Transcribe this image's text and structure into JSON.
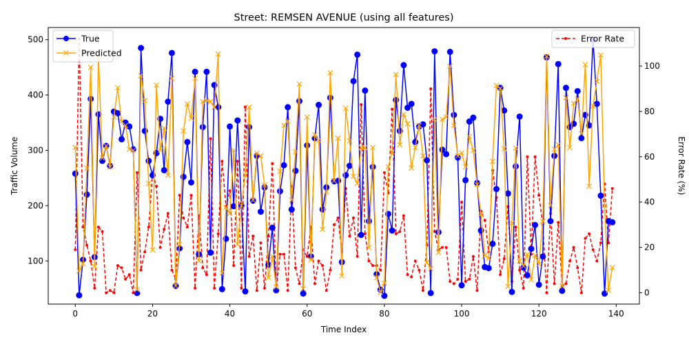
{
  "chart_data": {
    "type": "line",
    "title": "Street: REMSEN AVENUE (using all features)",
    "xlabel": "Time Index",
    "ylabel": "Traffic Volume",
    "y2label": "Error Rate (%)",
    "xlim": [
      -7,
      146
    ],
    "ylim": [
      22,
      522
    ],
    "y2lim": [
      -5,
      117
    ],
    "xticks": [
      0,
      20,
      40,
      60,
      80,
      100,
      120,
      140
    ],
    "yticks": [
      100,
      200,
      300,
      400,
      500
    ],
    "y2ticks": [
      0,
      20,
      40,
      60,
      80,
      100
    ],
    "grid": false,
    "legend_left": "top-left",
    "legend_right": "top-right",
    "series": [
      {
        "name": "True",
        "axis": "left",
        "color": "#0000ff",
        "marker": "circle",
        "values": [
          258,
          38,
          102,
          220,
          393,
          107,
          365,
          281,
          308,
          272,
          370,
          367,
          320,
          350,
          343,
          302,
          42,
          485,
          335,
          281,
          255,
          295,
          357,
          264,
          388,
          476,
          55,
          123,
          252,
          315,
          242,
          442,
          112,
          342,
          442,
          115,
          418,
          378,
          49,
          140,
          343,
          199,
          354,
          200,
          45,
          342,
          209,
          290,
          189,
          233,
          93,
          160,
          47,
          226,
          273,
          378,
          193,
          263,
          389,
          41,
          309,
          108,
          322,
          382,
          193,
          233,
          395,
          244,
          245,
          98,
          255,
          272,
          425,
          473,
          147,
          408,
          172,
          270,
          76,
          48,
          37,
          185,
          155,
          391,
          335,
          454,
          377,
          384,
          315,
          343,
          347,
          282,
          42,
          479,
          152,
          301,
          293,
          478,
          364,
          287,
          56,
          246,
          352,
          359,
          241,
          155,
          89,
          87,
          131,
          230,
          413,
          372,
          222,
          44,
          271,
          361,
          88,
          74,
          122,
          165,
          57,
          108,
          468,
          172,
          290,
          456,
          46,
          413,
          342,
          348,
          407,
          322,
          364,
          345,
          500,
          384,
          218,
          41,
          172,
          170
        ]
      },
      {
        "name": "Predicted",
        "axis": "left",
        "color": "#ffa500",
        "marker": "x",
        "values": [
          305,
          82,
          95,
          268,
          450,
          90,
          470,
          286,
          308,
          270,
          360,
          413,
          352,
          345,
          302,
          300,
          48,
          435,
          390,
          240,
          120,
          418,
          300,
          340,
          255,
          430,
          55,
          130,
          335,
          384,
          358,
          430,
          100,
          388,
          390,
          388,
          378,
          474,
          78,
          197,
          186,
          300,
          130,
          200,
          255,
          378,
          210,
          295,
          290,
          237,
          70,
          108,
          53,
          262,
          345,
          353,
          210,
          297,
          420,
          50,
          360,
          102,
          328,
          318,
          157,
          225,
          440,
          245,
          322,
          73,
          376,
          317,
          253,
          240,
          305,
          305,
          124,
          305,
          70,
          43,
          60,
          270,
          297,
          437,
          310,
          365,
          348,
          268,
          305,
          345,
          290,
          97,
          86,
          356,
          115,
          356,
          360,
          452,
          345,
          290,
          295,
          270,
          325,
          300,
          238,
          185,
          110,
          105,
          280,
          417,
          412,
          303,
          54,
          168,
          304,
          100,
          91,
          112,
          66,
          110,
          94,
          172,
          470,
          200,
          302,
          310,
          55,
          395,
          305,
          385,
          393,
          330,
          455,
          235,
          380,
          425,
          472,
          200,
          47,
          88
        ]
      },
      {
        "name": "Error Rate",
        "axis": "right",
        "color": "#ff0000",
        "marker": "dot",
        "dashed": true,
        "values": [
          19,
          112,
          29,
          21,
          14,
          2,
          29,
          27,
          0,
          1,
          0,
          12,
          11,
          6,
          8,
          0,
          53,
          10,
          18,
          29,
          53,
          47,
          20,
          28,
          35,
          10,
          6,
          43,
          33,
          29,
          43,
          2,
          34,
          11,
          8,
          68,
          2,
          26,
          58,
          38,
          45,
          12,
          58,
          2,
          82,
          16,
          25,
          1,
          22,
          2,
          25,
          57,
          1,
          17,
          17,
          1,
          47,
          11,
          4,
          19,
          16,
          29,
          4,
          14,
          12,
          1,
          10,
          30,
          33,
          18,
          46,
          25,
          33,
          16,
          83,
          26,
          14,
          12,
          12,
          10,
          53,
          44,
          81,
          26,
          27,
          34,
          8,
          7,
          14,
          10,
          1,
          21,
          90,
          27,
          19,
          20,
          20,
          5,
          4,
          6,
          40,
          5,
          6,
          16,
          1,
          36,
          32,
          18,
          54,
          42,
          8,
          15,
          38,
          5,
          29,
          10,
          2,
          60,
          17,
          60,
          43,
          30,
          0,
          35,
          4,
          31,
          3,
          4,
          14,
          20,
          11,
          0,
          24,
          26,
          19,
          14,
          22,
          48,
          22,
          46
        ]
      }
    ]
  }
}
